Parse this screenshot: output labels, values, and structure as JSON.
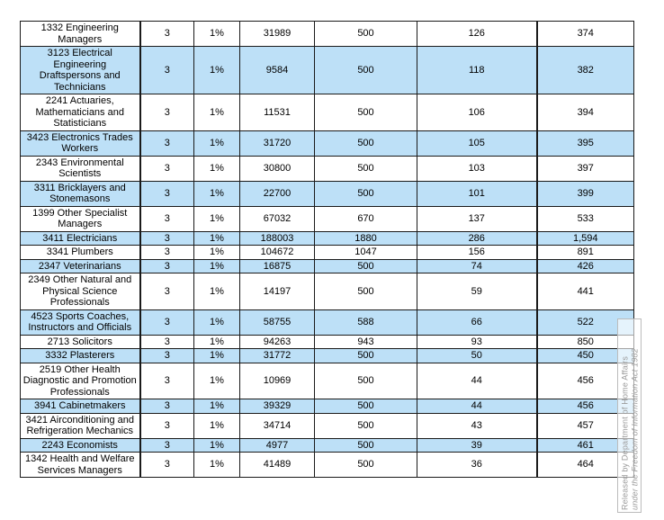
{
  "table": {
    "row_highlight_color": "#bde0f7",
    "rows": [
      {
        "highlighted": false,
        "cells": [
          "1332 Engineering Managers",
          "3",
          "1%",
          "31989",
          "500",
          "126",
          "374"
        ]
      },
      {
        "highlighted": true,
        "cells": [
          "3123 Electrical Engineering Draftspersons and Technicians",
          "3",
          "1%",
          "9584",
          "500",
          "118",
          "382"
        ]
      },
      {
        "highlighted": false,
        "cells": [
          "2241 Actuaries, Mathematicians and Statisticians",
          "3",
          "1%",
          "11531",
          "500",
          "106",
          "394"
        ]
      },
      {
        "highlighted": true,
        "cells": [
          "3423 Electronics Trades Workers",
          "3",
          "1%",
          "31720",
          "500",
          "105",
          "395"
        ]
      },
      {
        "highlighted": false,
        "cells": [
          "2343 Environmental Scientists",
          "3",
          "1%",
          "30800",
          "500",
          "103",
          "397"
        ]
      },
      {
        "highlighted": true,
        "cells": [
          "3311 Bricklayers and Stonemasons",
          "3",
          "1%",
          "22700",
          "500",
          "101",
          "399"
        ]
      },
      {
        "highlighted": false,
        "cells": [
          "1399 Other Specialist Managers",
          "3",
          "1%",
          "67032",
          "670",
          "137",
          "533"
        ]
      },
      {
        "highlighted": true,
        "cells": [
          "3411 Electricians",
          "3",
          "1%",
          "188003",
          "1880",
          "286",
          "1,594"
        ]
      },
      {
        "highlighted": false,
        "cells": [
          "3341 Plumbers",
          "3",
          "1%",
          "104672",
          "1047",
          "156",
          "891"
        ]
      },
      {
        "highlighted": true,
        "cells": [
          "2347 Veterinarians",
          "3",
          "1%",
          "16875",
          "500",
          "74",
          "426"
        ]
      },
      {
        "highlighted": false,
        "cells": [
          "2349 Other Natural and Physical Science Professionals",
          "3",
          "1%",
          "14197",
          "500",
          "59",
          "441"
        ]
      },
      {
        "highlighted": true,
        "cells": [
          "4523 Sports Coaches, Instructors and Officials",
          "3",
          "1%",
          "58755",
          "588",
          "66",
          "522"
        ]
      },
      {
        "highlighted": false,
        "cells": [
          "2713 Solicitors",
          "3",
          "1%",
          "94263",
          "943",
          "93",
          "850"
        ]
      },
      {
        "highlighted": true,
        "cells": [
          "3332 Plasterers",
          "3",
          "1%",
          "31772",
          "500",
          "50",
          "450"
        ]
      },
      {
        "highlighted": false,
        "cells": [
          "2519 Other Health Diagnostic and Promotion Professionals",
          "3",
          "1%",
          "10969",
          "500",
          "44",
          "456"
        ]
      },
      {
        "highlighted": true,
        "cells": [
          "3941 Cabinetmakers",
          "3",
          "1%",
          "39329",
          "500",
          "44",
          "456"
        ]
      },
      {
        "highlighted": false,
        "cells": [
          "3421 Airconditioning and Refrigeration Mechanics",
          "3",
          "1%",
          "34714",
          "500",
          "43",
          "457"
        ]
      },
      {
        "highlighted": true,
        "cells": [
          "2243 Economists",
          "3",
          "1%",
          "4977",
          "500",
          "39",
          "461"
        ]
      },
      {
        "highlighted": false,
        "cells": [
          "1342 Health and Welfare Services Managers",
          "3",
          "1%",
          "41489",
          "500",
          "36",
          "464"
        ]
      }
    ]
  },
  "watermark": {
    "line1": "Released by Department of Home Affairs",
    "line2": "under the Freedom of Information Act 1982"
  }
}
